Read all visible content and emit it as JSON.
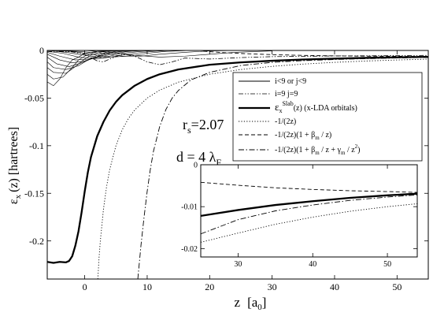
{
  "chart_data": [
    {
      "type": "line",
      "xlabel": "z",
      "xlabel_unit": "[a",
      "xlabel_unit_sub": "0",
      "xlabel_unit_close": "]",
      "ylabel": "ε",
      "ylabel_sub": "x",
      "ylabel_arg": "(z)  [hartrees]",
      "xlim": [
        -6,
        55
      ],
      "ylim": [
        -0.24,
        0
      ],
      "xticks": [
        0,
        10,
        20,
        30,
        40,
        50
      ],
      "xtick_labels": [
        "0",
        "10",
        "20",
        "30",
        "40",
        "50"
      ],
      "yticks": [
        0,
        -0.05,
        -0.1,
        -0.15,
        -0.2
      ],
      "ytick_labels": [
        "0",
        "-0.05",
        "-0.1",
        "-0.15",
        "-0.2"
      ],
      "annotations": {
        "rs_main": "r",
        "rs_sub": "s",
        "rs_val": "=2.07",
        "d_main": "d = 4 λ",
        "d_sub": "F"
      },
      "legend": {
        "placement": "top-right",
        "entries": [
          {
            "key": "orb",
            "style": "thin-solid",
            "text": "i<9  or j<9"
          },
          {
            "key": "ij9",
            "style": "dash-dot-dot",
            "text": "i=9  j=9"
          },
          {
            "key": "slab",
            "style": "thick-solid",
            "pre": "ε",
            "sub": "x",
            "sup": "Slab",
            "post": "(z) (x-LDA orbitals)"
          },
          {
            "key": "asym1",
            "style": "dotted",
            "text": "-1/(2z)"
          },
          {
            "key": "asym2",
            "style": "dashed",
            "pre": "-1/(2z)(1 + β",
            "sub": "m",
            "post": " / z)"
          },
          {
            "key": "asym3",
            "style": "dash-dot",
            "pre": "-1/(2z)(1 + β",
            "sub": "m",
            "mid": " / z + γ",
            "sub2": "m",
            "mid2": " / z",
            "sup2": "2",
            "post": ")"
          }
        ]
      },
      "series": [
        {
          "key": "slab",
          "points": [
            [
              -6,
              -0.222
            ],
            [
              -5,
              -0.223
            ],
            [
              -4,
              -0.222
            ],
            [
              -3,
              -0.2225
            ],
            [
              -2.5,
              -0.221
            ],
            [
              -2,
              -0.216
            ],
            [
              -1.5,
              -0.205
            ],
            [
              -1,
              -0.19
            ],
            [
              -0.5,
              -0.17
            ],
            [
              0,
              -0.148
            ],
            [
              0.5,
              -0.128
            ],
            [
              1,
              -0.112
            ],
            [
              2,
              -0.09
            ],
            [
              3,
              -0.075
            ],
            [
              4,
              -0.063
            ],
            [
              5,
              -0.054
            ],
            [
              6,
              -0.047
            ],
            [
              8,
              -0.037
            ],
            [
              10,
              -0.03
            ],
            [
              12,
              -0.025
            ],
            [
              15,
              -0.02
            ],
            [
              20,
              -0.015
            ],
            [
              25,
              -0.0125
            ],
            [
              30,
              -0.0108
            ],
            [
              35,
              -0.0095
            ],
            [
              40,
              -0.0086
            ],
            [
              45,
              -0.0078
            ],
            [
              50,
              -0.0072
            ],
            [
              55,
              -0.0067
            ]
          ]
        },
        {
          "key": "asym1",
          "points": [
            [
              2.1,
              -0.24
            ],
            [
              2.3,
              -0.217
            ],
            [
              2.5,
              -0.2
            ],
            [
              3,
              -0.1667
            ],
            [
              3.5,
              -0.1429
            ],
            [
              4,
              -0.125
            ],
            [
              5,
              -0.1
            ],
            [
              6,
              -0.0833
            ],
            [
              7,
              -0.0714
            ],
            [
              8,
              -0.0625
            ],
            [
              10,
              -0.05
            ],
            [
              12,
              -0.0417
            ],
            [
              15,
              -0.0333
            ],
            [
              20,
              -0.025
            ],
            [
              25,
              -0.02
            ],
            [
              30,
              -0.0167
            ],
            [
              35,
              -0.0143
            ],
            [
              40,
              -0.0125
            ],
            [
              45,
              -0.0111
            ],
            [
              50,
              -0.01
            ],
            [
              55,
              -0.0091
            ]
          ]
        },
        {
          "key": "asym3",
          "points": [
            [
              8.5,
              -0.24
            ],
            [
              9,
              -0.205
            ],
            [
              9.5,
              -0.175
            ],
            [
              10,
              -0.148
            ],
            [
              10.5,
              -0.125
            ],
            [
              11,
              -0.106
            ],
            [
              12,
              -0.08
            ],
            [
              13,
              -0.062
            ],
            [
              14,
              -0.05
            ],
            [
              15,
              -0.042
            ],
            [
              17,
              -0.031
            ],
            [
              20,
              -0.023
            ],
            [
              25,
              -0.0158
            ],
            [
              30,
              -0.0125
            ],
            [
              35,
              -0.0107
            ],
            [
              40,
              -0.0095
            ],
            [
              45,
              -0.0086
            ],
            [
              50,
              -0.0079
            ],
            [
              55,
              -0.0073
            ]
          ]
        },
        {
          "key": "asym2",
          "points": [
            [
              19,
              -0.0008
            ],
            [
              22,
              -0.0022
            ],
            [
              25,
              -0.0032
            ],
            [
              30,
              -0.0044
            ],
            [
              35,
              -0.0052
            ],
            [
              40,
              -0.0057
            ],
            [
              45,
              -0.006
            ],
            [
              50,
              -0.0062
            ],
            [
              55,
              -0.0063
            ]
          ]
        },
        {
          "key": "ij9",
          "points": [
            [
              -6,
              -0.001
            ],
            [
              -4,
              -0.001
            ],
            [
              -2,
              -0.0015
            ],
            [
              0,
              -0.004
            ],
            [
              2,
              -0.011
            ],
            [
              3,
              -0.012
            ],
            [
              4,
              -0.009
            ],
            [
              6,
              -0.004
            ],
            [
              8,
              -0.006
            ],
            [
              10,
              -0.012
            ],
            [
              12,
              -0.015
            ],
            [
              14,
              -0.012
            ],
            [
              16,
              -0.008
            ],
            [
              18,
              -0.0085
            ],
            [
              20,
              -0.009
            ],
            [
              25,
              -0.0075
            ],
            [
              30,
              -0.0065
            ],
            [
              40,
              -0.0058
            ],
            [
              55,
              -0.0052
            ]
          ]
        },
        {
          "key": "orb1",
          "points": [
            [
              -6,
              -0.033
            ],
            [
              -5,
              -0.037
            ],
            [
              -4,
              -0.03
            ],
            [
              -3,
              -0.018
            ],
            [
              -2,
              -0.01
            ],
            [
              -1,
              -0.007
            ],
            [
              0,
              -0.003
            ],
            [
              2,
              -0.001
            ],
            [
              5,
              0
            ]
          ]
        },
        {
          "key": "orb2",
          "points": [
            [
              -6,
              -0.025
            ],
            [
              -5,
              -0.03
            ],
            [
              -3.5,
              -0.028
            ],
            [
              -2,
              -0.018
            ],
            [
              -1,
              -0.01
            ],
            [
              0,
              -0.006
            ],
            [
              2,
              -0.001
            ],
            [
              5,
              0
            ]
          ]
        },
        {
          "key": "orb3",
          "points": [
            [
              -6,
              -0.018
            ],
            [
              -5,
              -0.023
            ],
            [
              -3,
              -0.024
            ],
            [
              -1.5,
              -0.017
            ],
            [
              0,
              -0.009
            ],
            [
              1,
              -0.005
            ],
            [
              3,
              -0.001
            ],
            [
              6,
              0
            ]
          ]
        },
        {
          "key": "orb4",
          "points": [
            [
              -6,
              -0.012
            ],
            [
              -5,
              -0.018
            ],
            [
              -3,
              -0.02
            ],
            [
              -1,
              -0.016
            ],
            [
              0.5,
              -0.01
            ],
            [
              2,
              -0.005
            ],
            [
              4,
              -0.001
            ],
            [
              7,
              0
            ]
          ]
        },
        {
          "key": "orb5",
          "points": [
            [
              -6,
              -0.007
            ],
            [
              -4.5,
              -0.014
            ],
            [
              -2.5,
              -0.017
            ],
            [
              -0.5,
              -0.013
            ],
            [
              1,
              -0.009
            ],
            [
              3,
              -0.004
            ],
            [
              5,
              -0.001
            ],
            [
              8,
              0
            ]
          ]
        },
        {
          "key": "orb6",
          "points": [
            [
              -6,
              -0.004
            ],
            [
              -4,
              -0.01
            ],
            [
              -2,
              -0.013
            ],
            [
              0,
              -0.011
            ],
            [
              2,
              -0.007
            ],
            [
              4,
              -0.003
            ],
            [
              6,
              -0.001
            ],
            [
              9,
              0
            ]
          ]
        },
        {
          "key": "orb7",
          "points": [
            [
              -6,
              -0.002
            ],
            [
              -4,
              -0.006
            ],
            [
              -1.5,
              -0.01
            ],
            [
              1,
              -0.009
            ],
            [
              3,
              -0.006
            ],
            [
              5,
              -0.003
            ],
            [
              7,
              -0.001
            ],
            [
              10,
              0
            ]
          ]
        },
        {
          "key": "orb8",
          "points": [
            [
              -6,
              -0.001
            ],
            [
              -3.5,
              -0.003
            ],
            [
              -1,
              -0.007
            ],
            [
              2,
              -0.009
            ],
            [
              4,
              -0.006
            ],
            [
              6,
              -0.003
            ],
            [
              9,
              -0.001
            ],
            [
              12,
              0
            ]
          ]
        },
        {
          "key": "orb9",
          "points": [
            [
              -6,
              0
            ],
            [
              -3,
              -0.002
            ],
            [
              0,
              -0.005
            ],
            [
              3,
              -0.008
            ],
            [
              5,
              -0.006
            ],
            [
              8,
              -0.003
            ],
            [
              11,
              -0.001
            ],
            [
              14,
              0
            ]
          ]
        },
        {
          "key": "orb10",
          "points": [
            [
              -6,
              0
            ],
            [
              -2,
              -0.001
            ],
            [
              1,
              -0.004
            ],
            [
              4,
              -0.007
            ],
            [
              7,
              -0.006
            ],
            [
              10,
              -0.003
            ],
            [
              13,
              -0.001
            ],
            [
              17,
              0
            ]
          ]
        },
        {
          "key": "orb11",
          "points": [
            [
              -6,
              0
            ],
            [
              -1,
              -0.001
            ],
            [
              3,
              -0.003
            ],
            [
              6,
              -0.006
            ],
            [
              9,
              -0.006
            ],
            [
              12,
              -0.004
            ],
            [
              16,
              -0.002
            ],
            [
              20,
              -0.0005
            ],
            [
              25,
              0
            ]
          ]
        },
        {
          "key": "orb12",
          "points": [
            [
              -6,
              0
            ],
            [
              0,
              0
            ],
            [
              4,
              -0.002
            ],
            [
              8,
              -0.005
            ],
            [
              12,
              -0.007
            ],
            [
              16,
              -0.006
            ],
            [
              20,
              -0.004
            ],
            [
              24,
              -0.002
            ],
            [
              30,
              -0.0005
            ]
          ]
        }
      ]
    },
    {
      "type": "line",
      "placement": "inset",
      "xlim": [
        25,
        54
      ],
      "ylim": [
        -0.022,
        0
      ],
      "xticks": [
        30,
        40,
        50
      ],
      "xtick_labels": [
        "30",
        "40",
        "50"
      ],
      "yticks": [
        0,
        -0.01,
        -0.02
      ],
      "ytick_labels": [
        "0",
        "-0.01",
        "-0.02"
      ],
      "series": [
        {
          "key": "slab",
          "points": [
            [
              25,
              -0.0122
            ],
            [
              30,
              -0.0108
            ],
            [
              35,
              -0.0096
            ],
            [
              40,
              -0.0087
            ],
            [
              45,
              -0.0079
            ],
            [
              50,
              -0.0073
            ],
            [
              54,
              -0.0069
            ]
          ]
        },
        {
          "key": "asym1",
          "points": [
            [
              25,
              -0.0185
            ],
            [
              30,
              -0.0163
            ],
            [
              35,
              -0.0142
            ],
            [
              40,
              -0.0125
            ],
            [
              45,
              -0.0111
            ],
            [
              50,
              -0.01
            ],
            [
              54,
              -0.0093
            ]
          ]
        },
        {
          "key": "asym3",
          "points": [
            [
              25,
              -0.0165
            ],
            [
              30,
              -0.0131
            ],
            [
              35,
              -0.011
            ],
            [
              40,
              -0.0096
            ],
            [
              45,
              -0.0085
            ],
            [
              50,
              -0.0077
            ],
            [
              54,
              -0.0072
            ]
          ]
        },
        {
          "key": "asym2",
          "points": [
            [
              25,
              -0.0042
            ],
            [
              30,
              -0.0049
            ],
            [
              35,
              -0.0055
            ],
            [
              40,
              -0.0059
            ],
            [
              45,
              -0.0062
            ],
            [
              50,
              -0.0064
            ],
            [
              54,
              -0.0066
            ]
          ]
        }
      ]
    }
  ]
}
